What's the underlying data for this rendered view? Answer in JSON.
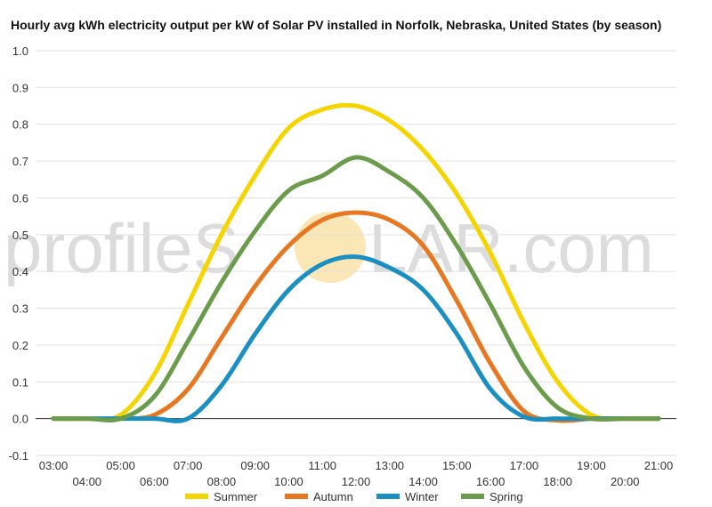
{
  "watermark": {
    "text_left": "profileS",
    "text_right": "LAR.com",
    "sun_color": "#fbe7b5"
  },
  "chart_data": {
    "type": "line",
    "title": "Hourly avg kWh electricity output per kW of Solar PV installed in Norfolk, Nebraska, United States (by season)",
    "xlabel": "",
    "ylabel": "",
    "ylim": [
      -0.1,
      1.0
    ],
    "yticks": [
      "-0.1",
      "0.0",
      "0.1",
      "0.2",
      "0.3",
      "0.4",
      "0.5",
      "0.6",
      "0.7",
      "0.8",
      "0.9",
      "1.0"
    ],
    "x": [
      "03:00",
      "04:00",
      "05:00",
      "06:00",
      "07:00",
      "08:00",
      "09:00",
      "10:00",
      "11:00",
      "12:00",
      "13:00",
      "14:00",
      "15:00",
      "16:00",
      "17:00",
      "18:00",
      "19:00",
      "20:00",
      "21:00"
    ],
    "grid": true,
    "legend_position": "bottom",
    "series": [
      {
        "name": "Summer",
        "color": "#f5d400",
        "values": [
          0.0,
          0.0,
          0.01,
          0.12,
          0.31,
          0.5,
          0.66,
          0.79,
          0.84,
          0.85,
          0.81,
          0.73,
          0.61,
          0.45,
          0.26,
          0.1,
          0.01,
          0.0,
          0.0
        ]
      },
      {
        "name": "Autumn",
        "color": "#e87722",
        "values": [
          0.0,
          0.0,
          0.0,
          0.01,
          0.08,
          0.22,
          0.36,
          0.47,
          0.54,
          0.56,
          0.54,
          0.47,
          0.32,
          0.15,
          0.02,
          -0.005,
          0.0,
          0.0,
          0.0
        ]
      },
      {
        "name": "Winter",
        "color": "#1a8fc2",
        "values": [
          0.0,
          0.0,
          0.0,
          0.0,
          0.0,
          0.09,
          0.23,
          0.35,
          0.42,
          0.44,
          0.41,
          0.35,
          0.23,
          0.08,
          0.005,
          0.0,
          0.0,
          0.0,
          0.0
        ]
      },
      {
        "name": "Spring",
        "color": "#6b9c4b",
        "values": [
          0.0,
          0.0,
          0.0,
          0.06,
          0.21,
          0.37,
          0.51,
          0.62,
          0.66,
          0.71,
          0.67,
          0.6,
          0.47,
          0.31,
          0.14,
          0.03,
          0.0,
          0.0,
          0.0
        ]
      }
    ]
  }
}
